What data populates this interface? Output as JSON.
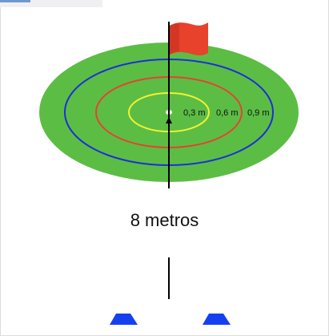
{
  "diagram": {
    "ring_labels": [
      "0,3 m",
      "0,6 m",
      "0,9 m"
    ],
    "distance_label": "8 metros"
  },
  "colors": {
    "green_field": "#5cbd45",
    "ring_inner": "#f2f22e",
    "ring_middle": "#e2452f",
    "ring_outer": "#1d2fd8",
    "flag": "#e8412c",
    "cones": "#1540f0",
    "pole": "#000000"
  }
}
